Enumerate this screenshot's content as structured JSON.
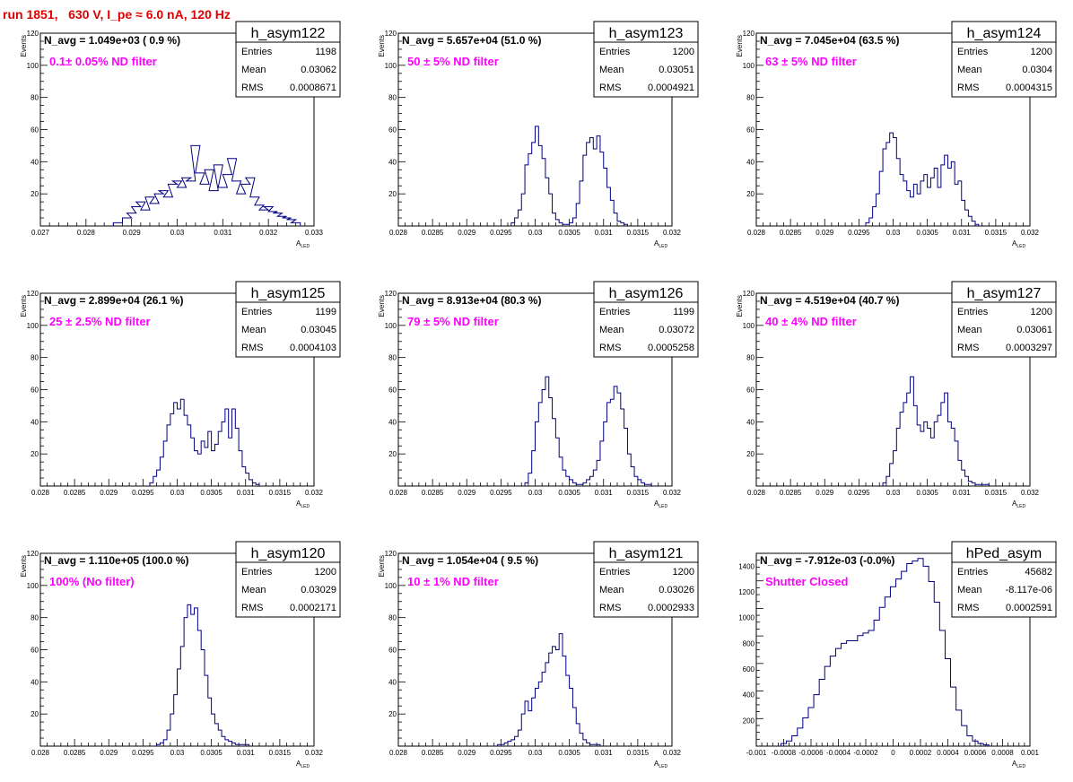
{
  "title": "run 1851,   630 V, I_pe ≈ 6.0 nA, 120 Hz",
  "styles": {
    "hist_color": "#000080",
    "note_color": "#ff00ff",
    "title_color": "#e00000"
  },
  "chart_data": [
    {
      "type": "bar",
      "name": "h_asym122",
      "stats": {
        "Entries": "1198",
        "Mean": "0.03062",
        "RMS": "0.0008671"
      },
      "navg": "N_avg = 1.049e+03 ( 0.9 %)",
      "note": "0.1± 0.05% ND filter",
      "ylabel": "Events",
      "xlabel": "A_LED",
      "ylim": [
        0,
        120
      ],
      "xlim": [
        0.027,
        0.033
      ],
      "xticks": [
        "0.027",
        "0.028",
        "0.029",
        "0.03",
        "0.031",
        "0.032",
        "0.033"
      ],
      "yticks": [
        "20",
        "40",
        "60",
        "80",
        "100",
        "120"
      ],
      "x": [
        0.0286,
        0.0288,
        0.0289,
        0.029,
        0.0291,
        0.0292,
        0.0293,
        0.0294,
        0.0295,
        0.0296,
        0.0297,
        0.0298,
        0.0299,
        0.03,
        0.0301,
        0.0302,
        0.0303,
        0.0304,
        0.0305,
        0.0306,
        0.0307,
        0.0308,
        0.0309,
        0.031,
        0.0311,
        0.0312,
        0.0313,
        0.0314,
        0.0315,
        0.0316,
        0.0317,
        0.0318,
        0.0319,
        0.032,
        0.0321,
        0.0322,
        0.0323,
        0.0324,
        0.0325
      ],
      "values": [
        2,
        5,
        8,
        12,
        15,
        10,
        18,
        14,
        20,
        22,
        18,
        26,
        28,
        24,
        30,
        28,
        50,
        33,
        26,
        35,
        22,
        38,
        24,
        32,
        42,
        28,
        20,
        26,
        30,
        18,
        13,
        10,
        12,
        9,
        8,
        6,
        5,
        4,
        2
      ]
    },
    {
      "type": "bar",
      "name": "h_asym123",
      "stats": {
        "Entries": "1200",
        "Mean": "0.03051",
        "RMS": "0.0004921"
      },
      "navg": "N_avg = 5.657e+04 (51.0 %)",
      "note": "50 ± 5% ND filter",
      "ylabel": "Events",
      "xlabel": "A_LED",
      "ylim": [
        0,
        120
      ],
      "xlim": [
        0.028,
        0.032
      ],
      "xticks": [
        "0.028",
        "0.0285",
        "0.029",
        "0.0295",
        "0.03",
        "0.0305",
        "0.031",
        "0.0315",
        "0.032"
      ],
      "yticks": [
        "20",
        "40",
        "60",
        "80",
        "100",
        "120"
      ],
      "x": [
        0.02965,
        0.0297,
        0.02975,
        0.0298,
        0.02985,
        0.0299,
        0.02995,
        0.03,
        0.03005,
        0.0301,
        0.03015,
        0.0302,
        0.03025,
        0.0303,
        0.03035,
        0.0304,
        0.03045,
        0.0305,
        0.03055,
        0.0306,
        0.03065,
        0.0307,
        0.03075,
        0.0308,
        0.03085,
        0.0309,
        0.03095,
        0.031,
        0.03105,
        0.0311,
        0.03115,
        0.0312,
        0.03125,
        0.0313
      ],
      "values": [
        2,
        5,
        10,
        20,
        38,
        45,
        52,
        62,
        50,
        42,
        30,
        20,
        8,
        4,
        2,
        1,
        1,
        2,
        5,
        14,
        28,
        44,
        52,
        55,
        48,
        56,
        46,
        36,
        24,
        16,
        8,
        3,
        2,
        1
      ]
    },
    {
      "type": "bar",
      "name": "h_asym124",
      "stats": {
        "Entries": "1200",
        "Mean": "0.0304",
        "RMS": "0.0004315"
      },
      "navg": "N_avg = 7.045e+04 (63.5 %)",
      "note": "63 ± 5% ND filter",
      "ylabel": "Events",
      "xlabel": "A_LED",
      "ylim": [
        0,
        120
      ],
      "xlim": [
        0.028,
        0.032
      ],
      "xticks": [
        "0.028",
        "0.0285",
        "0.029",
        "0.0295",
        "0.03",
        "0.0305",
        "0.031",
        "0.0315",
        "0.032"
      ],
      "yticks": [
        "20",
        "40",
        "60",
        "80",
        "100",
        "120"
      ],
      "x": [
        0.0296,
        0.02965,
        0.0297,
        0.02975,
        0.0298,
        0.02985,
        0.0299,
        0.02995,
        0.03,
        0.03005,
        0.0301,
        0.03015,
        0.0302,
        0.03025,
        0.0303,
        0.03035,
        0.0304,
        0.03045,
        0.0305,
        0.03055,
        0.0306,
        0.03065,
        0.0307,
        0.03075,
        0.0308,
        0.03085,
        0.0309,
        0.03095,
        0.031,
        0.03105,
        0.0311,
        0.03115,
        0.0312
      ],
      "values": [
        2,
        5,
        12,
        20,
        34,
        48,
        52,
        58,
        55,
        42,
        32,
        28,
        22,
        18,
        26,
        20,
        28,
        32,
        24,
        30,
        36,
        24,
        38,
        44,
        36,
        40,
        26,
        28,
        16,
        10,
        6,
        3,
        1
      ]
    },
    {
      "type": "bar",
      "name": "h_asym125",
      "stats": {
        "Entries": "1199",
        "Mean": "0.03045",
        "RMS": "0.0004103"
      },
      "navg": "N_avg = 2.899e+04 (26.1 %)",
      "note": "25 ± 2.5% ND filter",
      "ylabel": "Events",
      "xlabel": "A_LED",
      "ylim": [
        0,
        120
      ],
      "xlim": [
        0.028,
        0.032
      ],
      "xticks": [
        "0.028",
        "0.0285",
        "0.029",
        "0.0295",
        "0.03",
        "0.0305",
        "0.031",
        "0.0315",
        "0.032"
      ],
      "yticks": [
        "20",
        "40",
        "60",
        "80",
        "100",
        "120"
      ],
      "x": [
        0.0296,
        0.02965,
        0.0297,
        0.02975,
        0.0298,
        0.02985,
        0.0299,
        0.02995,
        0.03,
        0.03005,
        0.0301,
        0.03015,
        0.0302,
        0.03025,
        0.0303,
        0.03035,
        0.0304,
        0.03045,
        0.0305,
        0.03055,
        0.0306,
        0.03065,
        0.0307,
        0.03075,
        0.0308,
        0.03085,
        0.0309,
        0.03095,
        0.031,
        0.03105,
        0.0311,
        0.03115
      ],
      "values": [
        2,
        6,
        10,
        18,
        28,
        38,
        45,
        52,
        48,
        54,
        44,
        38,
        30,
        22,
        20,
        28,
        24,
        34,
        22,
        26,
        34,
        40,
        48,
        30,
        48,
        36,
        22,
        12,
        8,
        4,
        2,
        1
      ]
    },
    {
      "type": "bar",
      "name": "h_asym126",
      "stats": {
        "Entries": "1199",
        "Mean": "0.03072",
        "RMS": "0.0005258"
      },
      "navg": "N_avg = 8.913e+04 (80.3 %)",
      "note": "79 ± 5% ND filter",
      "ylabel": "Events",
      "xlabel": "A_LED",
      "ylim": [
        0,
        120
      ],
      "xlim": [
        0.028,
        0.032
      ],
      "xticks": [
        "0.028",
        "0.0285",
        "0.029",
        "0.0295",
        "0.03",
        "0.0305",
        "0.031",
        "0.0315",
        "0.032"
      ],
      "yticks": [
        "20",
        "40",
        "60",
        "80",
        "100",
        "120"
      ],
      "x": [
        0.02985,
        0.0299,
        0.02995,
        0.03,
        0.03005,
        0.0301,
        0.03015,
        0.0302,
        0.03025,
        0.0303,
        0.03035,
        0.0304,
        0.03045,
        0.0305,
        0.03055,
        0.0306,
        0.03065,
        0.0307,
        0.03075,
        0.0308,
        0.03085,
        0.0309,
        0.03095,
        0.031,
        0.03105,
        0.0311,
        0.03115,
        0.0312,
        0.03125,
        0.0313,
        0.03135,
        0.0314,
        0.03145,
        0.0315,
        0.03155,
        0.0316,
        0.03165
      ],
      "values": [
        2,
        8,
        22,
        40,
        52,
        60,
        68,
        55,
        42,
        30,
        18,
        10,
        6,
        4,
        2,
        1,
        1,
        2,
        4,
        6,
        10,
        16,
        28,
        40,
        52,
        54,
        62,
        58,
        48,
        36,
        20,
        12,
        6,
        4,
        2,
        1,
        1
      ]
    },
    {
      "type": "bar",
      "name": "h_asym127",
      "stats": {
        "Entries": "1200",
        "Mean": "0.03061",
        "RMS": "0.0003297"
      },
      "navg": "N_avg = 4.519e+04 (40.7 %)",
      "note": "40 ± 4% ND filter",
      "ylabel": "Events",
      "xlabel": "A_LED",
      "ylim": [
        0,
        120
      ],
      "xlim": [
        0.028,
        0.032
      ],
      "xticks": [
        "0.028",
        "0.0285",
        "0.029",
        "0.0295",
        "0.03",
        "0.0305",
        "0.031",
        "0.0315",
        "0.032"
      ],
      "yticks": [
        "20",
        "40",
        "60",
        "80",
        "100",
        "120"
      ],
      "x": [
        0.02985,
        0.0299,
        0.02995,
        0.03,
        0.03005,
        0.0301,
        0.03015,
        0.0302,
        0.03025,
        0.0303,
        0.03035,
        0.0304,
        0.03045,
        0.0305,
        0.03055,
        0.0306,
        0.03065,
        0.0307,
        0.03075,
        0.0308,
        0.03085,
        0.0309,
        0.03095,
        0.031,
        0.03105,
        0.0311,
        0.03115,
        0.0312,
        0.03125,
        0.0313,
        0.03135
      ],
      "values": [
        2,
        6,
        14,
        22,
        36,
        46,
        52,
        58,
        68,
        50,
        38,
        34,
        40,
        36,
        30,
        40,
        44,
        52,
        58,
        40,
        36,
        28,
        16,
        10,
        6,
        3,
        2,
        1,
        1,
        1,
        1
      ]
    },
    {
      "type": "bar",
      "name": "h_asym120",
      "stats": {
        "Entries": "1200",
        "Mean": "0.03029",
        "RMS": "0.0002171"
      },
      "navg": "N_avg = 1.110e+05 (100.0 %)",
      "note": "100% (No filter)",
      "ylabel": "Events",
      "xlabel": "A_LED",
      "ylim": [
        0,
        120
      ],
      "xlim": [
        0.028,
        0.032
      ],
      "xticks": [
        "0.028",
        "0.0285",
        "0.029",
        "0.0295",
        "0.03",
        "0.0305",
        "0.031",
        "0.0315",
        "0.032"
      ],
      "yticks": [
        "20",
        "40",
        "60",
        "80",
        "100",
        "120"
      ],
      "x": [
        0.0297,
        0.02975,
        0.0298,
        0.02985,
        0.0299,
        0.02995,
        0.03,
        0.03005,
        0.0301,
        0.03015,
        0.0302,
        0.03025,
        0.0303,
        0.03035,
        0.0304,
        0.03045,
        0.0305,
        0.03055,
        0.0306,
        0.03065,
        0.0307,
        0.03075,
        0.0308,
        0.03085,
        0.0309,
        0.03095,
        0.031
      ],
      "values": [
        1,
        2,
        4,
        10,
        20,
        32,
        48,
        62,
        80,
        88,
        82,
        86,
        72,
        60,
        44,
        30,
        20,
        14,
        10,
        6,
        4,
        3,
        2,
        1,
        1,
        1,
        1
      ]
    },
    {
      "type": "bar",
      "name": "h_asym121",
      "stats": {
        "Entries": "1200",
        "Mean": "0.03026",
        "RMS": "0.0002933"
      },
      "navg": "N_avg = 1.054e+04 ( 9.5 %)",
      "note": "10 ± 1% ND filter",
      "ylabel": "Events",
      "xlabel": "A_LED",
      "ylim": [
        0,
        120
      ],
      "xlim": [
        0.028,
        0.032
      ],
      "xticks": [
        "0.028",
        "0.0285",
        "0.029",
        "0.0295",
        "0.03",
        "0.0305",
        "0.031",
        "0.0315",
        "0.032"
      ],
      "yticks": [
        "20",
        "40",
        "60",
        "80",
        "100",
        "120"
      ],
      "x": [
        0.02945,
        0.0295,
        0.02955,
        0.0296,
        0.02965,
        0.0297,
        0.02975,
        0.0298,
        0.02985,
        0.0299,
        0.02995,
        0.03,
        0.03005,
        0.0301,
        0.03015,
        0.0302,
        0.03025,
        0.0303,
        0.03035,
        0.0304,
        0.03045,
        0.0305,
        0.03055,
        0.0306,
        0.03065,
        0.0307,
        0.03075,
        0.0308,
        0.03085,
        0.0309
      ],
      "values": [
        1,
        1,
        2,
        3,
        4,
        6,
        10,
        20,
        28,
        22,
        30,
        36,
        40,
        46,
        52,
        58,
        62,
        60,
        70,
        56,
        44,
        36,
        24,
        14,
        8,
        4,
        2,
        1,
        1,
        1
      ]
    },
    {
      "type": "bar",
      "name": "hPed_asym",
      "stats": {
        "Entries": "45682",
        "Mean": "-8.117e-06",
        "RMS": "0.0002591"
      },
      "navg": "N_avg = -7.912e-03 (-0.0%)",
      "note": "Shutter Closed",
      "ylabel": "",
      "xlabel": "A_LED",
      "ylim": [
        0,
        1500
      ],
      "xlim": [
        -0.001,
        0.001
      ],
      "xticks": [
        "-0.001",
        "-0.0008",
        "-0.0006",
        "-0.0004",
        "-0.0002",
        "0",
        "0.0002",
        "0.0004",
        "0.0006",
        "0.0008",
        "0.001"
      ],
      "yticks": [
        "200",
        "400",
        "600",
        "800",
        "1000",
        "1200",
        "1400"
      ],
      "x": [
        -0.00082,
        -0.00078,
        -0.00074,
        -0.0007,
        -0.00066,
        -0.00062,
        -0.00058,
        -0.00054,
        -0.0005,
        -0.00046,
        -0.00042,
        -0.00038,
        -0.00034,
        -0.0003,
        -0.00026,
        -0.00022,
        -0.00018,
        -0.00014,
        -0.0001,
        -6e-05,
        -2e-05,
        2e-05,
        6e-05,
        0.0001,
        0.00014,
        0.00018,
        0.00022,
        0.00026,
        0.0003,
        0.00034,
        0.00038,
        0.00042,
        0.00046,
        0.0005,
        0.00054,
        0.00058,
        0.00062,
        0.00066
      ],
      "values": [
        20,
        40,
        80,
        140,
        220,
        300,
        400,
        520,
        620,
        700,
        760,
        800,
        820,
        820,
        860,
        880,
        900,
        980,
        1080,
        1160,
        1240,
        1300,
        1360,
        1420,
        1440,
        1460,
        1400,
        1280,
        1120,
        900,
        680,
        460,
        280,
        160,
        80,
        40,
        20,
        10
      ]
    }
  ]
}
